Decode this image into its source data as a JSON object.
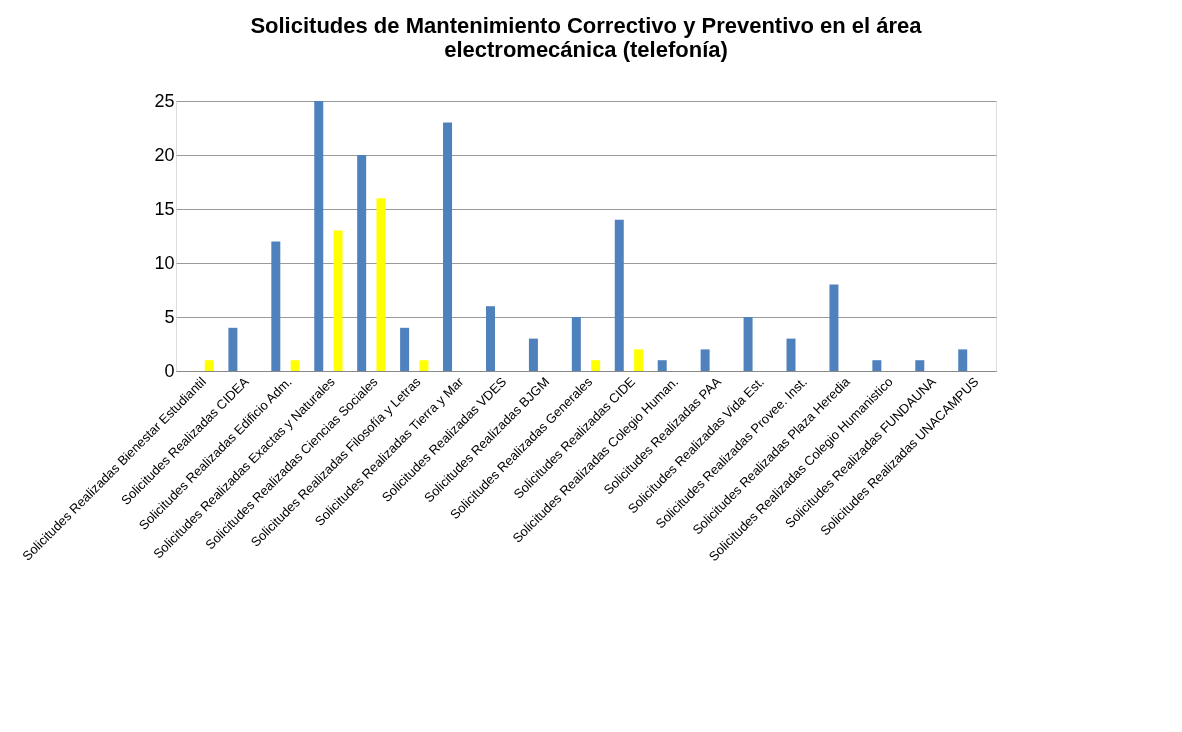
{
  "chart_data": {
    "type": "bar",
    "title": [
      "Solicitudes de Mantenimiento Correctivo y Preventivo en el área",
      "electromecánica (telefonía)"
    ],
    "categories": [
      "Solicitudes Realizadas Bienestar Estudiantil",
      "Solicitudes Realizadas CIDEA",
      "Solicitudes Realizadas Edificio Adm.",
      "Solicitudes Realizadas Exactas y Naturales",
      "Solicitudes Realizadas Ciencias Sociales",
      "Solicitudes Realizadas Filosofía y Letras",
      "Solicitudes Realizadas Tierra y Mar",
      "Solicitudes Realizadas  VDES",
      "Solicitudes Realizadas  BJGM",
      "Solicitudes Realizadas  Generales",
      "Solicitudes Realizadas  CIDE",
      "Solicitudes Realizadas  Colegio Human.",
      "Solicitudes Realizadas PAA",
      "Solicitudes Realizadas Vida Est.",
      "Solicitudes Realizadas Provee. Inst.",
      "Solicitudes Realizadas Plaza Heredia",
      "Solicitudes Realizadas Colegio Humanistico",
      "Solicitudes Realizadas FUNDAUNA",
      "Solicitudes Realizadas UNACAMPUS"
    ],
    "series": [
      {
        "color": "#4f81bd",
        "values": [
          0,
          4,
          12,
          25,
          20,
          4,
          23,
          6,
          3,
          5,
          14,
          1,
          2,
          5,
          3,
          8,
          1,
          1,
          2
        ]
      },
      {
        "color": "#ffff00",
        "values": [
          1,
          0,
          1,
          13,
          16,
          1,
          0,
          0,
          0,
          1,
          2,
          0,
          0,
          0,
          0,
          0,
          0,
          0,
          0
        ]
      }
    ],
    "ylim": [
      0,
      25
    ],
    "yticks": [
      0,
      5,
      10,
      15,
      20,
      25
    ],
    "grid": "y",
    "legend": false
  }
}
